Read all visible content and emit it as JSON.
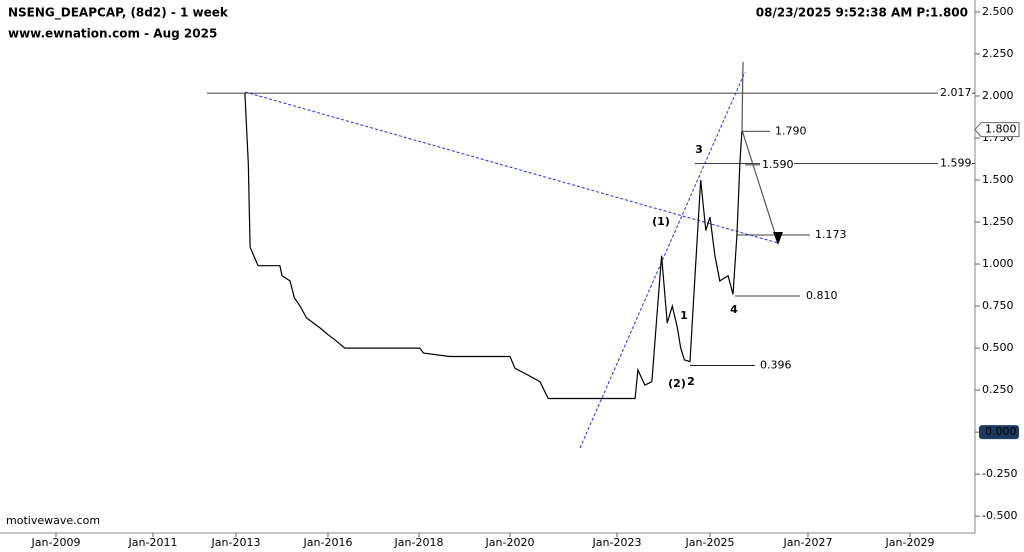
{
  "chart_data": {
    "type": "line",
    "title": "NSENG_DEAPCAP, (8d2) - 1 week",
    "subtitle": "www.ewnation.com  - Aug 2025",
    "timestamp": "08/23/2025 9:52:38 AM  P:1.800",
    "footer": "motivewave.com",
    "x": [
      2013.29,
      2013.4,
      2013.46,
      2013.72,
      2014.43,
      2014.5,
      2014.76,
      2014.9,
      2015.09,
      2015.3,
      2015.74,
      2016.0,
      2016.15,
      2016.37,
      2018.02,
      2018.1,
      2018.68,
      2020.0,
      2020.14,
      2020.5,
      2020.84,
      2021.07,
      2023.39,
      2023.45,
      2023.6,
      2023.75,
      2023.86,
      2023.96,
      2024.08,
      2024.19,
      2024.3,
      2024.37,
      2024.45,
      2024.57,
      2024.66,
      2024.8,
      2024.91,
      2025.0,
      2025.1,
      2025.2,
      2025.37,
      2025.47,
      2025.55,
      2025.61,
      2025.65
    ],
    "series": [
      {
        "name": "NSENG_DEAPCAP",
        "color": "#000000",
        "values": [
          2.017,
          1.6,
          1.1,
          0.99,
          0.99,
          0.93,
          0.9,
          0.8,
          0.75,
          0.68,
          0.62,
          0.58,
          0.55,
          0.5,
          0.5,
          0.47,
          0.45,
          0.45,
          0.38,
          0.34,
          0.3,
          0.2,
          0.2,
          0.37,
          0.28,
          0.3,
          0.7,
          1.05,
          0.65,
          0.75,
          0.62,
          0.5,
          0.43,
          0.42,
          0.85,
          1.5,
          1.2,
          1.28,
          1.05,
          0.9,
          0.93,
          0.82,
          1.17,
          1.6,
          1.79
        ]
      }
    ],
    "xlim": [
      2008.5,
      2030.3
    ],
    "xticks": [
      {
        "value": 2009,
        "label": "Jan-2009"
      },
      {
        "value": 2011,
        "label": "Jan-2011"
      },
      {
        "value": 2013,
        "label": "Jan-2013"
      },
      {
        "value": 2016,
        "label": "Jan-2016"
      },
      {
        "value": 2018,
        "label": "Jan-2018"
      },
      {
        "value": 2020,
        "label": "Jan-2020"
      },
      {
        "value": 2023,
        "label": "Jan-2023"
      },
      {
        "value": 2025,
        "label": "Jan-2025"
      },
      {
        "value": 2027,
        "label": "Jan-2027"
      },
      {
        "value": 2029,
        "label": "Jan-2029"
      }
    ],
    "ylim": [
      -0.6,
      2.571
    ],
    "yticks": [
      {
        "value": 2.5,
        "label": "2.500"
      },
      {
        "value": 2.25,
        "label": "2.250"
      },
      {
        "value": 2,
        "label": "2.000"
      },
      {
        "value": 1.75,
        "label": "1.750"
      },
      {
        "value": 1.5,
        "label": "1.500"
      },
      {
        "value": 1.25,
        "label": "1.250"
      },
      {
        "value": 1,
        "label": "1.000"
      },
      {
        "value": 0.75,
        "label": "0.750"
      },
      {
        "value": 0.5,
        "label": "0.500"
      },
      {
        "value": 0.25,
        "label": "0.250"
      },
      {
        "value": 0,
        "label": "0.000"
      },
      {
        "value": -0.25,
        "label": "-0.250"
      },
      {
        "value": -0.5,
        "label": "-0.500"
      }
    ],
    "price_marker": {
      "value": 1.8,
      "label": "1.800"
    },
    "levels": [
      {
        "value": 2.017,
        "label": "2.017"
      },
      {
        "value": 1.599,
        "label": "1.599"
      },
      {
        "value": 1.79,
        "label": "1.790"
      },
      {
        "value": 1.59,
        "label": "1.590"
      },
      {
        "value": 1.173,
        "label": "1.173"
      },
      {
        "value": 0.81,
        "label": "0.810"
      },
      {
        "value": 0.396,
        "label": "0.396"
      }
    ],
    "annotations": [
      {
        "text": "3",
        "color": "#1010d0"
      },
      {
        "text": "(1)",
        "color": "#e020d0"
      },
      {
        "text": "1",
        "color": "#1010d0"
      },
      {
        "text": "(2)",
        "color": "#e020d0"
      },
      {
        "text": "2",
        "color": "#1010d0"
      },
      {
        "text": "4",
        "color": "#1010d0"
      }
    ]
  }
}
